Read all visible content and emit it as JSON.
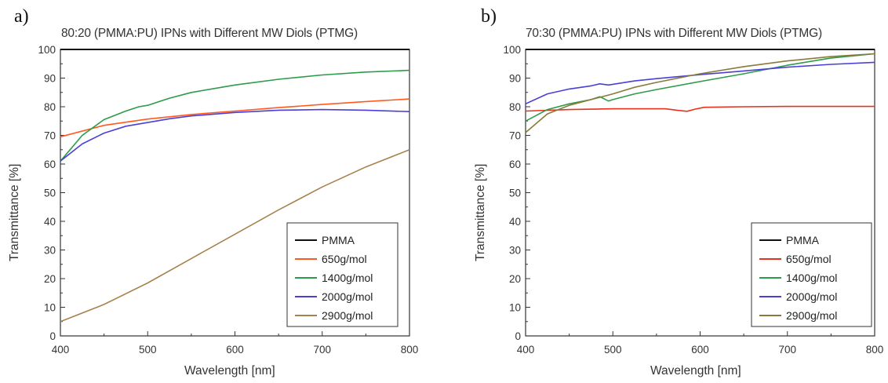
{
  "chart_data": [
    {
      "panel_label": "a)",
      "type": "line",
      "title": "80:20 (PMMA:PU) IPNs with Different MW Diols (PTMG)",
      "xlabel": "Wavelength [nm]",
      "ylabel": "Transmittance [%]",
      "xlim": [
        400,
        800
      ],
      "ylim": [
        0,
        100
      ],
      "xticks": [
        400,
        500,
        600,
        700,
        800
      ],
      "yticks": [
        0,
        10,
        20,
        30,
        40,
        50,
        60,
        70,
        80,
        90,
        100
      ],
      "grid": false,
      "legend_position": "bottom-right",
      "series": [
        {
          "name": "PMMA",
          "color": "#111111",
          "x": [
            400,
            800
          ],
          "y": [
            100,
            100
          ]
        },
        {
          "name": "650g/mol",
          "color": "#ff5a1f",
          "x": [
            400,
            450,
            500,
            550,
            600,
            650,
            700,
            750,
            800
          ],
          "y": [
            69.5,
            73.5,
            75.7,
            77.3,
            78.5,
            79.7,
            80.8,
            81.8,
            82.7
          ]
        },
        {
          "name": "1400g/mol",
          "color": "#2e9b4a",
          "x": [
            400,
            425,
            450,
            475,
            490,
            500,
            525,
            550,
            600,
            650,
            700,
            750,
            800
          ],
          "y": [
            61,
            70,
            75.5,
            78.5,
            80,
            80.5,
            83,
            85,
            87.6,
            89.6,
            91.1,
            92.1,
            92.7
          ]
        },
        {
          "name": "2000g/mol",
          "color": "#4b3fd8",
          "x": [
            400,
            425,
            450,
            475,
            500,
            525,
            550,
            600,
            650,
            700,
            750,
            800
          ],
          "y": [
            61,
            67,
            70.8,
            73.2,
            74.5,
            75.8,
            76.8,
            78,
            78.8,
            79,
            78.8,
            78.3
          ]
        },
        {
          "name": "2900g/mol",
          "color": "#a8824e",
          "x": [
            400,
            450,
            500,
            550,
            600,
            650,
            700,
            750,
            800
          ],
          "y": [
            5,
            11,
            18.5,
            27,
            35.5,
            44,
            52,
            59,
            65
          ]
        }
      ]
    },
    {
      "panel_label": "b)",
      "type": "line",
      "title": "70:30 (PMMA:PU) IPNs with Different MW Diols (PTMG)",
      "xlabel": "Wavelength [nm]",
      "ylabel": "Transmittance [%]",
      "xlim": [
        400,
        800
      ],
      "ylim": [
        0,
        100
      ],
      "xticks": [
        400,
        500,
        600,
        700,
        800
      ],
      "yticks": [
        0,
        10,
        20,
        30,
        40,
        50,
        60,
        70,
        80,
        90,
        100
      ],
      "grid": false,
      "legend_position": "bottom-right",
      "series": [
        {
          "name": "PMMA",
          "color": "#111111",
          "x": [
            400,
            800
          ],
          "y": [
            100,
            100
          ]
        },
        {
          "name": "650g/mol",
          "color": "#e8321e",
          "x": [
            400,
            450,
            500,
            560,
            575,
            585,
            595,
            605,
            650,
            700,
            750,
            800
          ],
          "y": [
            78.5,
            79,
            79.3,
            79.3,
            78.7,
            78.4,
            79.2,
            79.8,
            80,
            80.1,
            80.1,
            80.1
          ]
        },
        {
          "name": "1400g/mol",
          "color": "#2e9b4a",
          "x": [
            400,
            425,
            450,
            475,
            485,
            495,
            500,
            525,
            550,
            600,
            650,
            700,
            750,
            800
          ],
          "y": [
            75,
            79,
            81,
            82.5,
            83.5,
            82,
            82.5,
            84.5,
            86,
            88.8,
            91.5,
            94.5,
            97,
            98.5
          ]
        },
        {
          "name": "2000g/mol",
          "color": "#4b3fd8",
          "x": [
            400,
            425,
            450,
            475,
            485,
            495,
            525,
            550,
            600,
            650,
            700,
            750,
            800
          ],
          "y": [
            81,
            84.5,
            86.2,
            87.3,
            88,
            87.6,
            89,
            89.8,
            91.2,
            92.5,
            93.8,
            94.8,
            95.5
          ]
        },
        {
          "name": "2900g/mol",
          "color": "#8a7a3a",
          "x": [
            400,
            425,
            450,
            475,
            500,
            525,
            550,
            600,
            650,
            700,
            750,
            800
          ],
          "y": [
            71,
            77.5,
            80.5,
            82.5,
            84.5,
            86.8,
            88.5,
            91.5,
            94,
            96,
            97.5,
            98.5
          ]
        }
      ]
    }
  ]
}
